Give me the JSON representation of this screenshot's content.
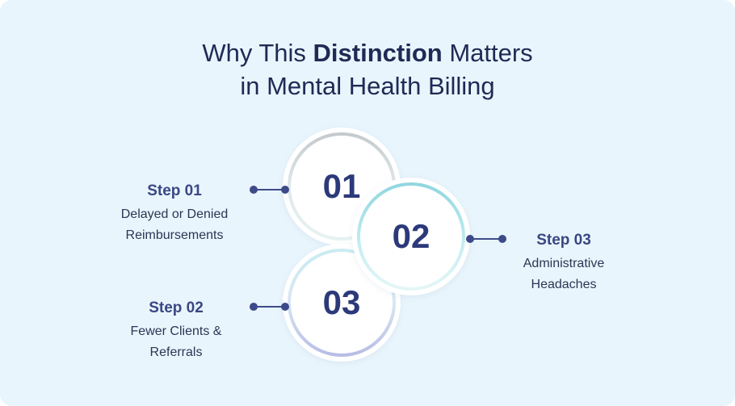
{
  "heading": {
    "line1_prefix": "Why This ",
    "line1_bold": "Distinction",
    "line1_suffix": " Matters",
    "line2": "in Mental Health Billing"
  },
  "circles": [
    {
      "number": "01"
    },
    {
      "number": "02"
    },
    {
      "number": "03"
    }
  ],
  "steps": [
    {
      "title": "Step 01",
      "desc_line1": "Delayed or Denied",
      "desc_line2": "Reimbursements"
    },
    {
      "title": "Step 02",
      "desc_line1": "Fewer Clients &",
      "desc_line2": "Referrals"
    },
    {
      "title": "Step 03",
      "desc_line1": "Administrative",
      "desc_line2": "Headaches"
    }
  ],
  "colors": {
    "background": "#e9f5fc",
    "heading": "#1f2a55",
    "accent": "#3a4784"
  }
}
